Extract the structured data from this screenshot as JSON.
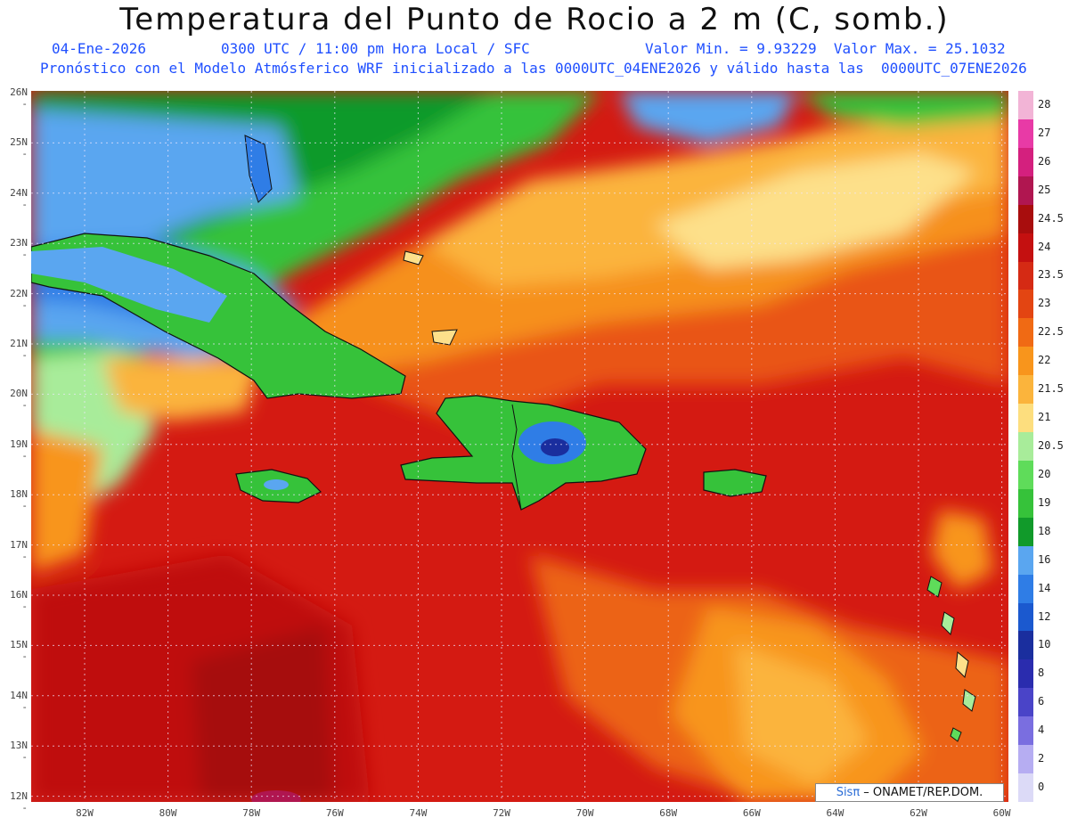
{
  "header": {
    "title": "Temperatura del Punto de Rocio a 2 m (C, somb.)",
    "date": "04-Ene-2026",
    "time": "0300 UTC / 11:00 pm Hora Local / SFC",
    "minmax": "Valor Min. = 9.93229  Valor Max. = 25.1032",
    "model_info": "Pronóstico con el Modelo Atmósferico WRF inicializado a las 0000UTC_04ENE2026 y válido hasta las  0000UTC_07ENE2026"
  },
  "lat_labels": [
    "26N",
    "25N",
    "24N",
    "23N",
    "22N",
    "21N",
    "20N",
    "19N",
    "18N",
    "17N",
    "16N",
    "15N",
    "14N",
    "13N",
    "12N"
  ],
  "lon_labels": [
    "82W",
    "80W",
    "78W",
    "76W",
    "74W",
    "72W",
    "70W",
    "68W",
    "66W",
    "64W",
    "62W",
    "60W"
  ],
  "colorbar": {
    "labels": [
      "28",
      "27",
      "26",
      "25",
      "24.5",
      "24",
      "23.5",
      "23",
      "22.5",
      "22",
      "21.5",
      "21",
      "20.5",
      "20",
      "19",
      "18",
      "16",
      "14",
      "12",
      "10",
      "8",
      "6",
      "4",
      "2",
      "0"
    ],
    "colors": [
      "#f2b4d6",
      "#e83aa6",
      "#d4207e",
      "#b01650",
      "#a80d0d",
      "#c41010",
      "#d52a14",
      "#e34512",
      "#f06a14",
      "#f8951c",
      "#fbb43c",
      "#fdde7e",
      "#a8ec9a",
      "#5fdc5a",
      "#36c23a",
      "#119a2a",
      "#5aa6f0",
      "#2f7de6",
      "#1b59cf",
      "#1a2e9e",
      "#2a2cae",
      "#4a44c8",
      "#7a6ee0",
      "#b6adf2",
      "#dcdaf7"
    ]
  },
  "credit": {
    "logo": "Sisπ",
    "text": " – ONAMET/REP.DOM."
  }
}
